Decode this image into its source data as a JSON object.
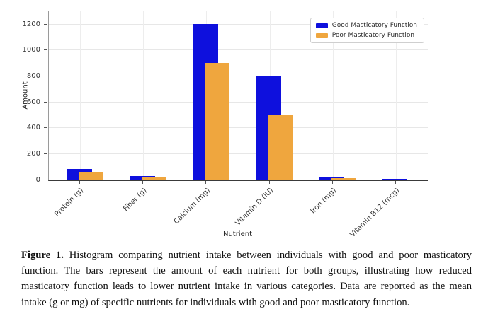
{
  "chart_data": {
    "type": "bar",
    "title": "",
    "xlabel": "Nutrient",
    "ylabel": "Amount",
    "categories": [
      "Protein (g)",
      "Fiber (g)",
      "Calcium (mg)",
      "Vitamin D (IU)",
      "Iron (mg)",
      "Vitamin B12 (mcg)"
    ],
    "series": [
      {
        "name": "Good Masticatory Function",
        "color": "#0e10dd",
        "values": [
          80,
          30,
          1200,
          800,
          15,
          5
        ]
      },
      {
        "name": "Poor Masticatory Function",
        "color": "#efa63e",
        "values": [
          60,
          20,
          900,
          500,
          10,
          2
        ]
      }
    ],
    "ylim": [
      0,
      1300
    ],
    "yticks": [
      0,
      200,
      400,
      600,
      800,
      1000,
      1200
    ],
    "grid": true,
    "legend_position": "upper right",
    "bar_style": "overlapping"
  },
  "caption": {
    "label": "Figure 1.",
    "text": "Histogram comparing nutrient intake between individuals with good and poor masticatory function. The bars represent the amount of each nutrient for both groups, illustrating how reduced masticatory function leads to lower nutrient intake in various categories. Data are reported as the mean intake (g or mg) of specific nutrients for individuals with good and poor masticatory function."
  }
}
